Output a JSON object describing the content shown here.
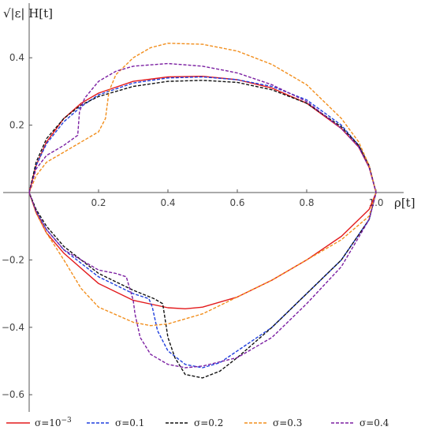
{
  "chart_data": {
    "type": "line",
    "xlabel": "ρ[t]",
    "ylabel": "√|ε| H[t]",
    "xlim": [
      0,
      1.05
    ],
    "ylim": [
      -0.62,
      0.48
    ],
    "xticks": [
      0.2,
      0.4,
      0.6,
      0.8,
      1.0
    ],
    "xtick_labels": [
      "0.2",
      "0.4",
      "0.6",
      "0.8",
      "1.0"
    ],
    "yticks": [
      -0.6,
      -0.4,
      -0.2,
      0.2,
      0.4
    ],
    "ytick_labels": [
      "−0.6",
      "−0.4",
      "−0.2",
      "0.2",
      "0.4"
    ],
    "legend_position": "bottom",
    "series": [
      {
        "name": "σ=10⁻³",
        "label_base": "σ=10",
        "label_exp": "−3",
        "color": "#e31a1c",
        "dash": "solid",
        "points": [
          [
            0,
            0
          ],
          [
            0.02,
            0.08
          ],
          [
            0.05,
            0.15
          ],
          [
            0.1,
            0.22
          ],
          [
            0.15,
            0.265
          ],
          [
            0.2,
            0.295
          ],
          [
            0.3,
            0.33
          ],
          [
            0.4,
            0.343
          ],
          [
            0.5,
            0.345
          ],
          [
            0.6,
            0.335
          ],
          [
            0.7,
            0.31
          ],
          [
            0.8,
            0.265
          ],
          [
            0.9,
            0.19
          ],
          [
            0.95,
            0.135
          ],
          [
            0.98,
            0.075
          ],
          [
            1.0,
            0
          ],
          [
            0.98,
            -0.05
          ],
          [
            0.9,
            -0.13
          ],
          [
            0.8,
            -0.2
          ],
          [
            0.7,
            -0.26
          ],
          [
            0.6,
            -0.31
          ],
          [
            0.5,
            -0.34
          ],
          [
            0.45,
            -0.345
          ],
          [
            0.4,
            -0.342
          ],
          [
            0.3,
            -0.32
          ],
          [
            0.2,
            -0.27
          ],
          [
            0.1,
            -0.18
          ],
          [
            0.05,
            -0.12
          ],
          [
            0.02,
            -0.06
          ],
          [
            0,
            0
          ]
        ]
      },
      {
        "name": "σ=0.1",
        "color": "#1f3fdd",
        "dash": "dashed",
        "points": [
          [
            0,
            0
          ],
          [
            0.02,
            0.08
          ],
          [
            0.05,
            0.145
          ],
          [
            0.1,
            0.21
          ],
          [
            0.15,
            0.255
          ],
          [
            0.2,
            0.29
          ],
          [
            0.3,
            0.325
          ],
          [
            0.4,
            0.34
          ],
          [
            0.5,
            0.343
          ],
          [
            0.6,
            0.335
          ],
          [
            0.7,
            0.315
          ],
          [
            0.8,
            0.275
          ],
          [
            0.9,
            0.2
          ],
          [
            0.95,
            0.14
          ],
          [
            0.98,
            0.08
          ],
          [
            1.0,
            0
          ],
          [
            0.98,
            -0.08
          ],
          [
            0.9,
            -0.2
          ],
          [
            0.8,
            -0.3
          ],
          [
            0.7,
            -0.4
          ],
          [
            0.6,
            -0.47
          ],
          [
            0.55,
            -0.505
          ],
          [
            0.5,
            -0.52
          ],
          [
            0.45,
            -0.51
          ],
          [
            0.4,
            -0.47
          ],
          [
            0.37,
            -0.41
          ],
          [
            0.355,
            -0.34
          ],
          [
            0.345,
            -0.315
          ],
          [
            0.3,
            -0.3
          ],
          [
            0.2,
            -0.25
          ],
          [
            0.1,
            -0.17
          ],
          [
            0.05,
            -0.11
          ],
          [
            0.02,
            -0.055
          ],
          [
            0,
            0
          ]
        ]
      },
      {
        "name": "σ=0.2",
        "color": "#111111",
        "dash": "dashed",
        "points": [
          [
            0,
            0
          ],
          [
            0.02,
            0.09
          ],
          [
            0.05,
            0.16
          ],
          [
            0.1,
            0.22
          ],
          [
            0.15,
            0.26
          ],
          [
            0.2,
            0.285
          ],
          [
            0.3,
            0.315
          ],
          [
            0.4,
            0.33
          ],
          [
            0.5,
            0.333
          ],
          [
            0.6,
            0.327
          ],
          [
            0.7,
            0.305
          ],
          [
            0.8,
            0.265
          ],
          [
            0.9,
            0.195
          ],
          [
            0.95,
            0.14
          ],
          [
            0.98,
            0.08
          ],
          [
            1.0,
            0
          ],
          [
            0.98,
            -0.08
          ],
          [
            0.9,
            -0.2
          ],
          [
            0.8,
            -0.3
          ],
          [
            0.7,
            -0.4
          ],
          [
            0.6,
            -0.49
          ],
          [
            0.55,
            -0.53
          ],
          [
            0.5,
            -0.55
          ],
          [
            0.45,
            -0.54
          ],
          [
            0.42,
            -0.49
          ],
          [
            0.4,
            -0.43
          ],
          [
            0.385,
            -0.33
          ],
          [
            0.36,
            -0.315
          ],
          [
            0.3,
            -0.29
          ],
          [
            0.2,
            -0.24
          ],
          [
            0.1,
            -0.16
          ],
          [
            0.05,
            -0.1
          ],
          [
            0.02,
            -0.05
          ],
          [
            0,
            0
          ]
        ]
      },
      {
        "name": "σ=0.3",
        "color": "#f28e1c",
        "dash": "dashed",
        "points": [
          [
            0,
            0
          ],
          [
            0.02,
            0.05
          ],
          [
            0.05,
            0.09
          ],
          [
            0.1,
            0.12
          ],
          [
            0.15,
            0.15
          ],
          [
            0.2,
            0.18
          ],
          [
            0.22,
            0.22
          ],
          [
            0.23,
            0.3
          ],
          [
            0.25,
            0.35
          ],
          [
            0.3,
            0.4
          ],
          [
            0.35,
            0.43
          ],
          [
            0.4,
            0.443
          ],
          [
            0.5,
            0.44
          ],
          [
            0.6,
            0.42
          ],
          [
            0.7,
            0.38
          ],
          [
            0.8,
            0.32
          ],
          [
            0.9,
            0.22
          ],
          [
            0.95,
            0.15
          ],
          [
            0.98,
            0.08
          ],
          [
            1.0,
            0
          ],
          [
            0.98,
            -0.07
          ],
          [
            0.9,
            -0.14
          ],
          [
            0.8,
            -0.2
          ],
          [
            0.7,
            -0.26
          ],
          [
            0.6,
            -0.31
          ],
          [
            0.5,
            -0.36
          ],
          [
            0.4,
            -0.39
          ],
          [
            0.35,
            -0.395
          ],
          [
            0.3,
            -0.385
          ],
          [
            0.2,
            -0.34
          ],
          [
            0.15,
            -0.285
          ],
          [
            0.1,
            -0.2
          ],
          [
            0.05,
            -0.12
          ],
          [
            0.02,
            -0.06
          ],
          [
            0,
            0
          ]
        ]
      },
      {
        "name": "σ=0.4",
        "color": "#7b1fa2",
        "dash": "dashed",
        "points": [
          [
            0,
            0
          ],
          [
            0.02,
            0.07
          ],
          [
            0.05,
            0.11
          ],
          [
            0.1,
            0.14
          ],
          [
            0.14,
            0.17
          ],
          [
            0.145,
            0.24
          ],
          [
            0.16,
            0.28
          ],
          [
            0.2,
            0.33
          ],
          [
            0.25,
            0.36
          ],
          [
            0.3,
            0.375
          ],
          [
            0.4,
            0.383
          ],
          [
            0.5,
            0.375
          ],
          [
            0.6,
            0.355
          ],
          [
            0.7,
            0.32
          ],
          [
            0.8,
            0.27
          ],
          [
            0.9,
            0.19
          ],
          [
            0.95,
            0.135
          ],
          [
            0.98,
            0.075
          ],
          [
            1.0,
            0
          ],
          [
            0.98,
            -0.08
          ],
          [
            0.9,
            -0.22
          ],
          [
            0.8,
            -0.33
          ],
          [
            0.7,
            -0.43
          ],
          [
            0.6,
            -0.49
          ],
          [
            0.5,
            -0.515
          ],
          [
            0.45,
            -0.52
          ],
          [
            0.4,
            -0.51
          ],
          [
            0.35,
            -0.48
          ],
          [
            0.32,
            -0.43
          ],
          [
            0.305,
            -0.36
          ],
          [
            0.3,
            -0.32
          ],
          [
            0.28,
            -0.25
          ],
          [
            0.25,
            -0.24
          ],
          [
            0.2,
            -0.23
          ],
          [
            0.1,
            -0.17
          ],
          [
            0.05,
            -0.11
          ],
          [
            0.02,
            -0.055
          ],
          [
            0,
            0
          ]
        ]
      }
    ]
  }
}
